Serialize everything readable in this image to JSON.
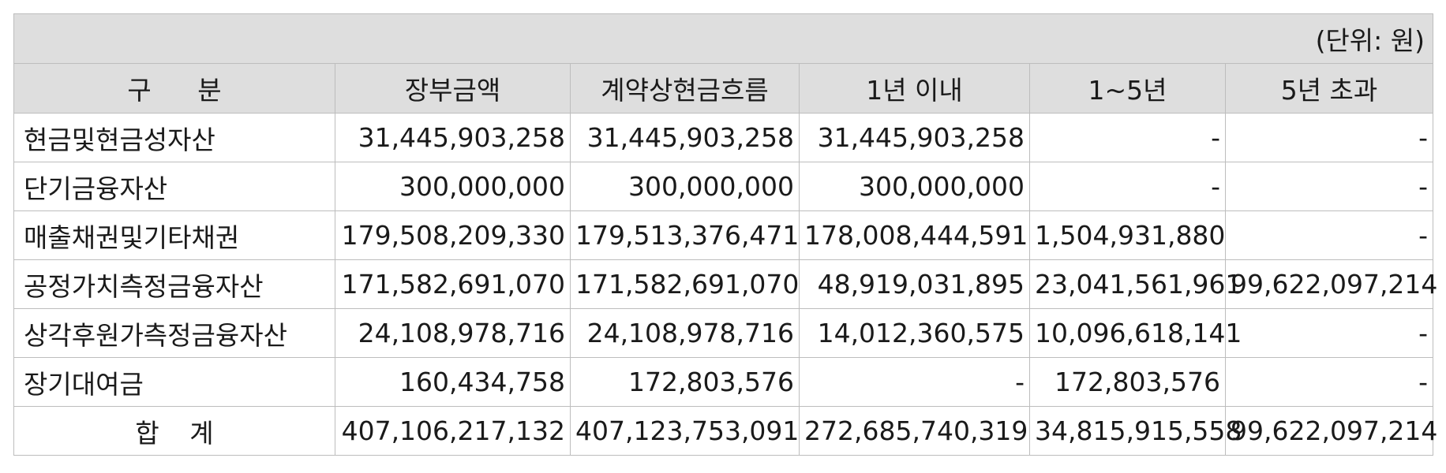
{
  "unit_note": "(단위: 원)",
  "headers": [
    "구 분",
    "장부금액",
    "계약상현금흐름",
    "1년 이내",
    "1~5년",
    "5년 초과"
  ],
  "rows": [
    {
      "label": "현금및현금성자산",
      "values": [
        "31,445,903,258",
        "31,445,903,258",
        "31,445,903,258",
        "-",
        "-"
      ]
    },
    {
      "label": "단기금융자산",
      "values": [
        "300,000,000",
        "300,000,000",
        "300,000,000",
        "-",
        "-"
      ]
    },
    {
      "label": "매출채권및기타채권",
      "values": [
        "179,508,209,330",
        "179,513,376,471",
        "178,008,444,591",
        "1,504,931,880",
        "-"
      ]
    },
    {
      "label": "공정가치측정금융자산",
      "values": [
        "171,582,691,070",
        "171,582,691,070",
        "48,919,031,895",
        "23,041,561,961",
        "99,622,097,214"
      ]
    },
    {
      "label": "상각후원가측정금융자산",
      "values": [
        "24,108,978,716",
        "24,108,978,716",
        "14,012,360,575",
        "10,096,618,141",
        "-"
      ]
    },
    {
      "label": "장기대여금",
      "values": [
        "160,434,758",
        "172,803,576",
        "-",
        "172,803,576",
        "-"
      ]
    },
    {
      "label": "합 계",
      "values": [
        "407,106,217,132",
        "407,123,753,091",
        "272,685,740,319",
        "34,815,915,558",
        "99,622,097,214"
      ]
    }
  ]
}
